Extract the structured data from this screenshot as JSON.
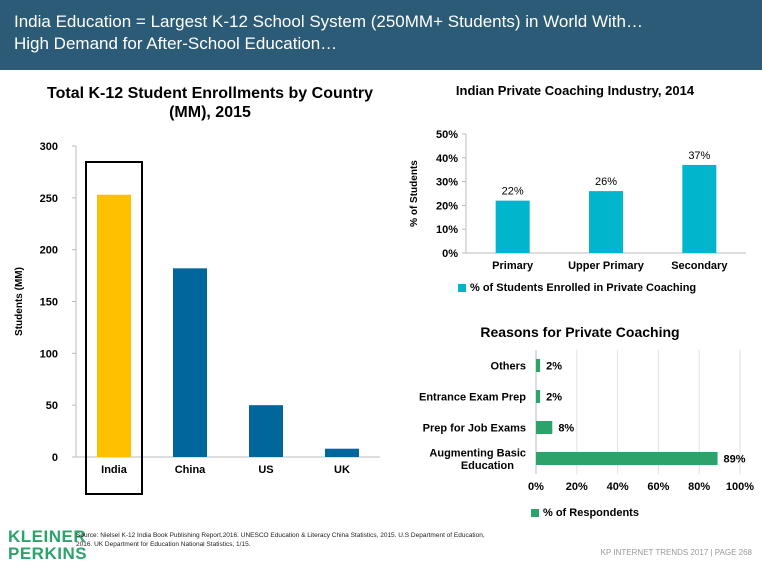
{
  "header": {
    "line1": "India Education = Largest K-12 School System (250MM+ Students) in World With…",
    "line2": "High Demand for After-School Education…"
  },
  "colors": {
    "header_bg": "#2b5b76",
    "india_bar": "#ffc000",
    "country_bar": "#00669b",
    "coaching_bar": "#00b5cc",
    "reasons_bar": "#2ca36b"
  },
  "chart_data": [
    {
      "type": "bar",
      "title": "Total K-12 Student Enrollments by Country (MM), 2015",
      "categories": [
        "India",
        "China",
        "US",
        "UK"
      ],
      "values": [
        253,
        182,
        50,
        8
      ],
      "ylabel": "Students (MM)",
      "ylim": [
        0,
        300
      ],
      "yticks": [
        "0",
        "50",
        "100",
        "150",
        "200",
        "250",
        "300"
      ],
      "highlight": "India",
      "grid": false
    },
    {
      "type": "bar",
      "title": "Indian Private Coaching Industry, 2014",
      "categories": [
        "Primary",
        "Upper Primary",
        "Secondary"
      ],
      "values": [
        22,
        26,
        37
      ],
      "data_labels": [
        "22%",
        "26%",
        "37%"
      ],
      "ylabel": "% of Students",
      "ylim": [
        0,
        50
      ],
      "yticks": [
        "0%",
        "10%",
        "20%",
        "30%",
        "40%",
        "50%"
      ],
      "legend": "% of Students Enrolled in Private Coaching",
      "legend_position": "bottom",
      "grid": false
    },
    {
      "type": "bar",
      "orientation": "horizontal",
      "title": "Reasons for Private Coaching",
      "categories": [
        "Others",
        "Entrance Exam Prep",
        "Prep for Job Exams",
        "Augmenting Basic Education"
      ],
      "values": [
        2,
        2,
        8,
        89
      ],
      "data_labels": [
        "2%",
        "2%",
        "8%",
        "89%"
      ],
      "xlim": [
        0,
        100
      ],
      "xticks": [
        "0%",
        "20%",
        "40%",
        "60%",
        "80%",
        "100%"
      ],
      "legend": "% of Respondents",
      "legend_position": "bottom",
      "grid": true
    }
  ],
  "footer": {
    "logo_line1": "KLEINER",
    "logo_line2": "PERKINS",
    "source": "Source: Nielsel K-12 India Book Publishing Report,2016. UNESCO Education & Literacy China Statistics, 2015. U.S Department of Education, 2016. UK Department for Education National Statistics, 1/15.",
    "page": "KP INTERNET TRENDS 2017   |   PAGE 268"
  }
}
